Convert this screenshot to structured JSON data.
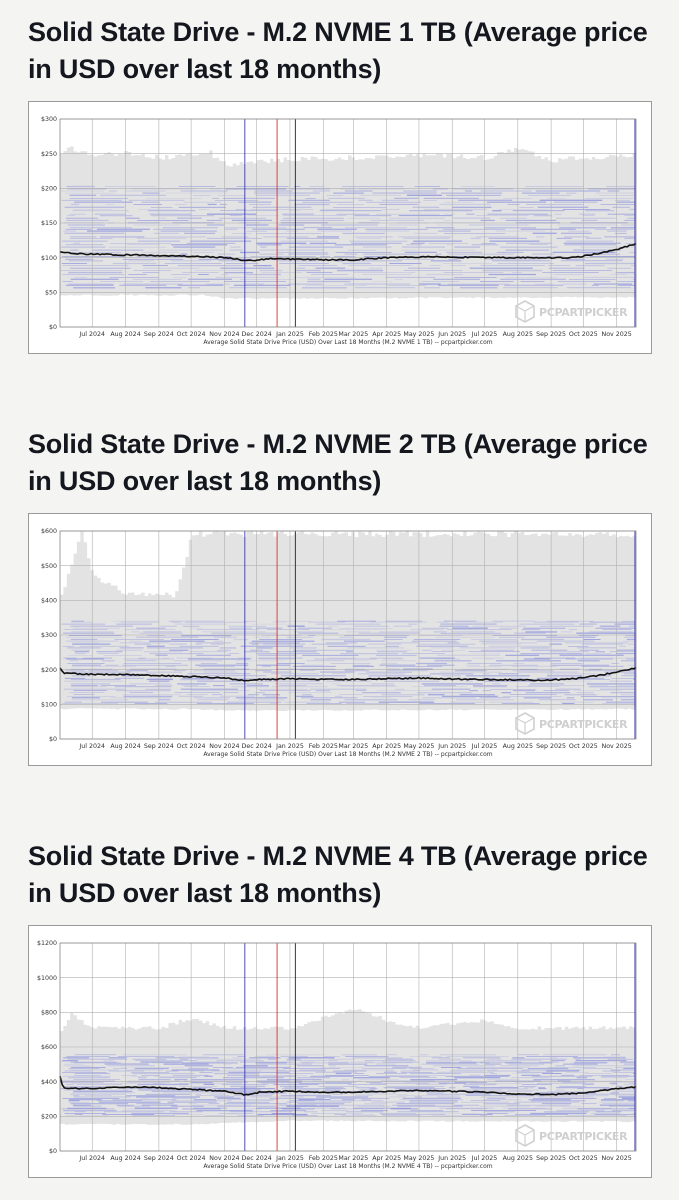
{
  "brand": {
    "logo_text": "PCPARTPICKER",
    "band_color": "#e3e3e3",
    "distribution_color": "#4a55d8",
    "average_line_color": "#111111",
    "marker_colors": [
      "#3a3ab0",
      "#d83030",
      "#222222",
      "#3a3ab0"
    ]
  },
  "sections": [
    {
      "title": "Solid State Drive - M.2 NVME 1 TB (Average price in USD over last 18 months)",
      "chart_data": {
        "type": "line",
        "x_type": "month",
        "x_tick_labels": [
          "Jul 2024",
          "Aug 2024",
          "Sep 2024",
          "Oct 2024",
          "Nov 2024",
          "Dec 2024",
          "Jan 2025",
          "Feb 2025",
          "Mar 2025",
          "Apr 2025",
          "May 2025",
          "Jun 2025",
          "Jul 2025",
          "Aug 2025",
          "Sep 2025",
          "Oct 2025",
          "Nov 2025"
        ],
        "xlim": [
          "2024-06-01",
          "2025-11-19"
        ],
        "y_tick_labels": [
          "$0",
          "$50",
          "$100",
          "$150",
          "$200",
          "$250",
          "$300"
        ],
        "ylim": [
          0,
          300
        ],
        "grid": true,
        "caption": "Average Solid State Drive Price (USD) Over Last 18 Months (M.2 NVME 1 TB) -- pcpartpicker.com",
        "series": [
          {
            "points": [
              [
                "2024-06-01",
                108
              ],
              [
                "2024-06-15",
                106
              ],
              [
                "2024-07-01",
                105
              ],
              [
                "2024-08-01",
                104
              ],
              [
                "2024-09-01",
                103
              ],
              [
                "2024-10-01",
                102
              ],
              [
                "2024-10-20",
                101
              ],
              [
                "2024-11-05",
                100
              ],
              [
                "2024-11-20",
                96
              ],
              [
                "2024-12-01",
                96
              ],
              [
                "2024-12-15",
                99
              ],
              [
                "2025-01-01",
                98
              ],
              [
                "2025-02-01",
                97
              ],
              [
                "2025-03-01",
                97
              ],
              [
                "2025-04-01",
                100
              ],
              [
                "2025-05-01",
                101
              ],
              [
                "2025-06-01",
                101
              ],
              [
                "2025-07-01",
                100
              ],
              [
                "2025-08-01",
                100
              ],
              [
                "2025-09-01",
                100
              ],
              [
                "2025-09-20",
                100
              ],
              [
                "2025-10-01",
                102
              ],
              [
                "2025-10-15",
                106
              ],
              [
                "2025-11-01",
                112
              ],
              [
                "2025-11-19",
                120
              ]
            ]
          }
        ],
        "band": {
          "low": [
            [
              "2024-06-01",
              45
            ],
            [
              "2024-10-15",
              45
            ],
            [
              "2024-11-01",
              40
            ],
            [
              "2025-11-19",
              42
            ]
          ],
          "high": [
            [
              "2024-06-01",
              252
            ],
            [
              "2024-06-10",
              262
            ],
            [
              "2024-07-01",
              250
            ],
            [
              "2024-08-01",
              255
            ],
            [
              "2024-09-01",
              248
            ],
            [
              "2024-10-01",
              252
            ],
            [
              "2024-10-15",
              258
            ],
            [
              "2024-11-01",
              238
            ],
            [
              "2025-01-01",
              246
            ],
            [
              "2025-03-01",
              248
            ],
            [
              "2025-05-01",
              252
            ],
            [
              "2025-07-01",
              248
            ],
            [
              "2025-08-01",
              262
            ],
            [
              "2025-09-01",
              244
            ],
            [
              "2025-10-01",
              248
            ],
            [
              "2025-11-19",
              252
            ]
          ]
        },
        "distribution": {
          "low": 55,
          "high": 205
        },
        "marker_dates": [
          "2024-11-20",
          "2024-12-20",
          "2025-01-06",
          "2025-11-18"
        ]
      }
    },
    {
      "title": "Solid State Drive - M.2 NVME 2 TB (Average price in USD over last 18 months)",
      "chart_data": {
        "type": "line",
        "x_type": "month",
        "x_tick_labels": [
          "Jul 2024",
          "Aug 2024",
          "Sep 2024",
          "Oct 2024",
          "Nov 2024",
          "Dec 2024",
          "Jan 2025",
          "Feb 2025",
          "Mar 2025",
          "Apr 2025",
          "May 2025",
          "Jun 2025",
          "Jul 2025",
          "Aug 2025",
          "Sep 2025",
          "Oct 2025",
          "Nov 2025"
        ],
        "xlim": [
          "2024-06-01",
          "2025-11-19"
        ],
        "y_tick_labels": [
          "$0",
          "$100",
          "$200",
          "$300",
          "$400",
          "$500",
          "$600"
        ],
        "ylim": [
          0,
          600
        ],
        "grid": true,
        "caption": "Average Solid State Drive Price (USD) Over Last 18 Months (M.2 NVME 2 TB) -- pcpartpicker.com",
        "series": [
          {
            "points": [
              [
                "2024-06-01",
                205
              ],
              [
                "2024-06-04",
                190
              ],
              [
                "2024-06-15",
                188
              ],
              [
                "2024-07-01",
                187
              ],
              [
                "2024-08-01",
                186
              ],
              [
                "2024-09-01",
                183
              ],
              [
                "2024-10-01",
                180
              ],
              [
                "2024-11-01",
                176
              ],
              [
                "2024-11-20",
                168
              ],
              [
                "2024-12-05",
                172
              ],
              [
                "2025-01-01",
                174
              ],
              [
                "2025-02-01",
                172
              ],
              [
                "2025-03-01",
                172
              ],
              [
                "2025-04-01",
                174
              ],
              [
                "2025-05-01",
                176
              ],
              [
                "2025-06-01",
                173
              ],
              [
                "2025-07-01",
                172
              ],
              [
                "2025-08-01",
                170
              ],
              [
                "2025-09-01",
                170
              ],
              [
                "2025-10-01",
                176
              ],
              [
                "2025-10-20",
                186
              ],
              [
                "2025-11-19",
                205
              ]
            ]
          }
        ],
        "band": {
          "low": [
            [
              "2024-06-01",
              85
            ],
            [
              "2024-10-01",
              84
            ],
            [
              "2024-11-01",
              80
            ],
            [
              "2025-11-19",
              84
            ]
          ],
          "high": [
            [
              "2024-06-01",
              420
            ],
            [
              "2024-06-20",
              605
            ],
            [
              "2024-07-01",
              475
            ],
            [
              "2024-08-01",
              425
            ],
            [
              "2024-09-01",
              425
            ],
            [
              "2024-09-15",
              420
            ],
            [
              "2024-10-01",
              600
            ],
            [
              "2024-11-01",
              600
            ],
            [
              "2025-01-01",
              600
            ],
            [
              "2025-03-01",
              600
            ],
            [
              "2025-05-01",
              600
            ],
            [
              "2025-07-01",
              600
            ],
            [
              "2025-09-01",
              600
            ],
            [
              "2025-11-19",
              600
            ]
          ]
        },
        "distribution": {
          "low": 100,
          "high": 345
        },
        "marker_dates": [
          "2024-11-20",
          "2024-12-20",
          "2025-01-06",
          "2025-11-18"
        ]
      }
    },
    {
      "title": "Solid State Drive - M.2 NVME 4 TB (Average price in USD over last 18 months)",
      "chart_data": {
        "type": "line",
        "x_type": "month",
        "x_tick_labels": [
          "Jul 2024",
          "Aug 2024",
          "Sep 2024",
          "Oct 2024",
          "Nov 2024",
          "Dec 2024",
          "Jan 2025",
          "Feb 2025",
          "Mar 2025",
          "Apr 2025",
          "May 2025",
          "Jun 2025",
          "Jul 2025",
          "Aug 2025",
          "Sep 2025",
          "Oct 2025",
          "Nov 2025"
        ],
        "xlim": [
          "2024-06-01",
          "2025-11-19"
        ],
        "y_tick_labels": [
          "$0",
          "$200",
          "$400",
          "$600",
          "$800",
          "$1000",
          "$1200"
        ],
        "ylim": [
          0,
          1200
        ],
        "grid": true,
        "caption": "Average Solid State Drive Price (USD) Over Last 18 Months (M.2 NVME 4 TB) -- pcpartpicker.com",
        "series": [
          {
            "points": [
              [
                "2024-06-01",
                430
              ],
              [
                "2024-06-04",
                365
              ],
              [
                "2024-06-20",
                360
              ],
              [
                "2024-07-01",
                362
              ],
              [
                "2024-08-01",
                370
              ],
              [
                "2024-09-01",
                365
              ],
              [
                "2024-10-01",
                355
              ],
              [
                "2024-11-01",
                345
              ],
              [
                "2024-11-20",
                325
              ],
              [
                "2024-12-05",
                340
              ],
              [
                "2025-01-01",
                345
              ],
              [
                "2025-02-01",
                338
              ],
              [
                "2025-03-01",
                340
              ],
              [
                "2025-04-01",
                345
              ],
              [
                "2025-05-01",
                350
              ],
              [
                "2025-06-01",
                345
              ],
              [
                "2025-07-01",
                340
              ],
              [
                "2025-08-01",
                330
              ],
              [
                "2025-09-01",
                325
              ],
              [
                "2025-10-01",
                335
              ],
              [
                "2025-10-20",
                350
              ],
              [
                "2025-11-19",
                370
              ]
            ]
          }
        ],
        "band": {
          "low": [
            [
              "2024-06-01",
              150
            ],
            [
              "2024-10-01",
              150
            ],
            [
              "2025-01-01",
              170
            ],
            [
              "2025-11-19",
              165
            ]
          ],
          "high": [
            [
              "2024-06-01",
              700
            ],
            [
              "2024-06-10",
              800
            ],
            [
              "2024-07-01",
              720
            ],
            [
              "2024-09-01",
              720
            ],
            [
              "2024-10-01",
              780
            ],
            [
              "2024-11-01",
              720
            ],
            [
              "2025-01-01",
              720
            ],
            [
              "2025-02-01",
              780
            ],
            [
              "2025-03-01",
              840
            ],
            [
              "2025-04-01",
              760
            ],
            [
              "2025-05-01",
              720
            ],
            [
              "2025-07-01",
              770
            ],
            [
              "2025-08-01",
              720
            ],
            [
              "2025-10-01",
              720
            ],
            [
              "2025-11-19",
              720
            ]
          ]
        },
        "distribution": {
          "low": 200,
          "high": 560
        },
        "marker_dates": [
          "2024-11-20",
          "2024-12-20",
          "2025-01-06",
          "2025-11-18"
        ]
      }
    }
  ]
}
